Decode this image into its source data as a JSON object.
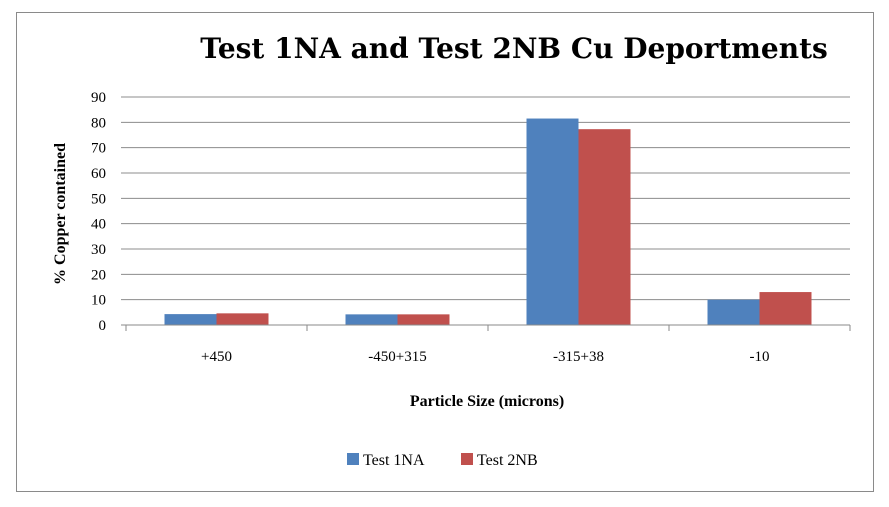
{
  "chart_data": {
    "type": "bar",
    "title": "Test 1NA and Test 2NB Cu Deportments",
    "xlabel": "Particle Size (microns)",
    "ylabel": "% Copper contained",
    "categories": [
      "+450",
      "-450+315",
      "-315+38",
      "-10"
    ],
    "series": [
      {
        "name": "Test 1NA",
        "color": "#4F81BD",
        "values": [
          4.3,
          4.2,
          81.5,
          10
        ]
      },
      {
        "name": "Test 2NB",
        "color": "#C0504D",
        "values": [
          4.6,
          4.2,
          77.3,
          13
        ]
      }
    ],
    "ylim": [
      0,
      90
    ],
    "yticks": [
      0,
      10,
      20,
      30,
      40,
      50,
      60,
      70,
      80,
      90
    ],
    "grid": true,
    "legend": "bottom"
  }
}
